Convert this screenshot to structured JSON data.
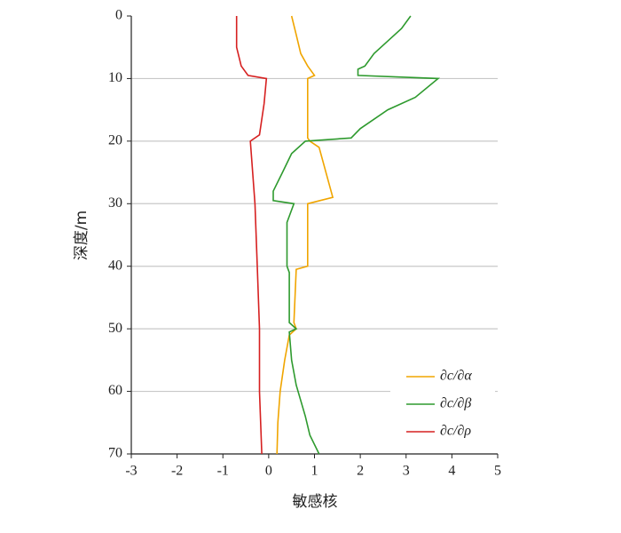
{
  "chart_data": {
    "type": "line",
    "x_label": "敏感核",
    "y_label": "深度/m",
    "xlim": [
      -3,
      5
    ],
    "xticks": [
      -3,
      -2,
      -1,
      0,
      1,
      2,
      3,
      4,
      5
    ],
    "ylim": [
      0,
      70
    ],
    "yticks": [
      0,
      10,
      20,
      30,
      40,
      50,
      60,
      70
    ],
    "y_inverted": true,
    "grid": true,
    "legend": "lower right",
    "series": [
      {
        "name": "∂c/∂α",
        "color": "#f0a500",
        "y": [
          0,
          3,
          6,
          8,
          9.5,
          10,
          19.5,
          20,
          21,
          29,
          30,
          40,
          40.5,
          49,
          50,
          51,
          55,
          60,
          65,
          70
        ],
        "values": [
          0.5,
          0.6,
          0.7,
          0.85,
          1.0,
          0.85,
          0.85,
          0.9,
          1.1,
          1.4,
          0.85,
          0.85,
          0.6,
          0.55,
          0.6,
          0.45,
          0.35,
          0.25,
          0.2,
          0.18
        ]
      },
      {
        "name": "∂c/∂β",
        "color": "#2e9a2e",
        "y": [
          0,
          2,
          4,
          6,
          8,
          8.5,
          9.5,
          10,
          13,
          15,
          18,
          19.5,
          20,
          22,
          25,
          28,
          29.5,
          30,
          33,
          40,
          41,
          49,
          50,
          50.5,
          55,
          59,
          64,
          67,
          70
        ],
        "values": [
          3.1,
          2.9,
          2.6,
          2.3,
          2.1,
          1.95,
          1.95,
          3.7,
          3.2,
          2.6,
          2.0,
          1.8,
          0.8,
          0.5,
          0.3,
          0.1,
          0.1,
          0.55,
          0.4,
          0.4,
          0.45,
          0.45,
          0.6,
          0.45,
          0.5,
          0.6,
          0.8,
          0.9,
          1.1
        ]
      },
      {
        "name": "∂c/∂ρ",
        "color": "#d62020",
        "y": [
          0,
          5,
          8,
          9.5,
          10,
          14,
          19,
          20,
          25,
          30,
          40,
          50,
          60,
          70
        ],
        "values": [
          -0.7,
          -0.7,
          -0.6,
          -0.45,
          -0.05,
          -0.1,
          -0.2,
          -0.4,
          -0.35,
          -0.3,
          -0.25,
          -0.2,
          -0.2,
          -0.15
        ]
      }
    ]
  }
}
